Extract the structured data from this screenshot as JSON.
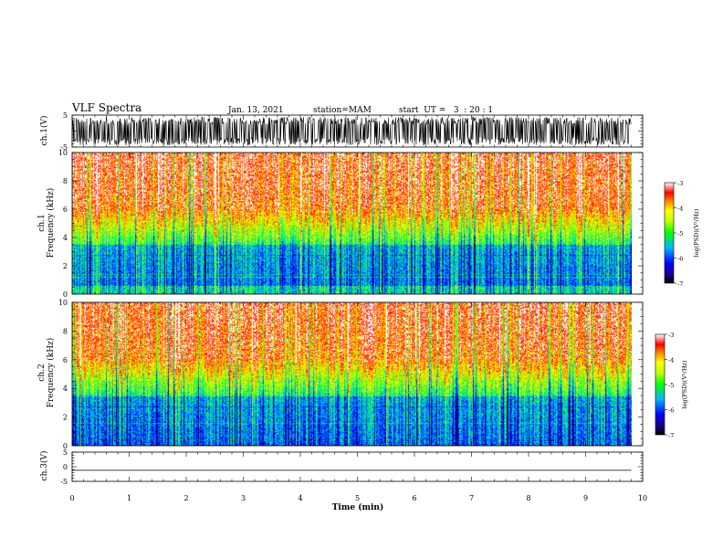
{
  "header": {
    "title": "VLF Spectra",
    "date": "Jan. 13, 2021",
    "station": "station=MAM",
    "start": "start  UT =   3  : 20 : 1"
  },
  "chart_data": [
    {
      "type": "line",
      "panel": "ch1-waveform",
      "ylabel": "ch.1(V)",
      "ylim": [
        -5,
        5
      ],
      "yticks": [
        "5",
        "-5"
      ],
      "description_signal": "noisy waveform, amplitude mostly between -4.5 and 4.5 V",
      "xlim": [
        0,
        10
      ]
    },
    {
      "type": "heatmap",
      "panel": "ch1-spectrogram",
      "ylabel": "ch.1\nFrequency (kHz)",
      "ylabel_line1": "ch.1",
      "ylabel_line2": "Frequency (kHz)",
      "ylim": [
        0,
        10
      ],
      "yticks": [
        "0",
        "2",
        "4",
        "6",
        "8",
        "10"
      ],
      "xlim": [
        0,
        10
      ],
      "data_extent_x": [
        0,
        9.8
      ],
      "colorbar": {
        "label": "log(PSD)(V²/Hz)",
        "range": [
          -7,
          -3
        ],
        "ticks": [
          "-3",
          "-4",
          "-5",
          "-6",
          "-7"
        ]
      }
    },
    {
      "type": "heatmap",
      "panel": "ch2-spectrogram",
      "ylabel_line1": "ch.2",
      "ylabel_line2": "Frequency (kHz)",
      "ylim": [
        0,
        10
      ],
      "yticks": [
        "0",
        "2",
        "4",
        "6",
        "8",
        "10"
      ],
      "xlim": [
        0,
        10
      ],
      "data_extent_x": [
        0,
        9.8
      ],
      "colorbar": {
        "label": "log(PSD)(V²/Hz)",
        "range": [
          -7,
          -3
        ],
        "ticks": [
          "-3",
          "-4",
          "-5",
          "-6",
          "-7"
        ]
      }
    },
    {
      "type": "line",
      "panel": "ch3-waveform",
      "ylabel": "ch.3(V)",
      "ylim": [
        -5,
        5
      ],
      "yticks": [
        "5",
        "0",
        "-5"
      ],
      "values_description": "flat line at about -1.2 V",
      "level": -1.2,
      "xlim": [
        0,
        10
      ]
    }
  ],
  "xaxis": {
    "label": "Time  (min)",
    "ticks": [
      "0",
      "1",
      "2",
      "3",
      "4",
      "5",
      "6",
      "7",
      "8",
      "9",
      "10"
    ]
  }
}
